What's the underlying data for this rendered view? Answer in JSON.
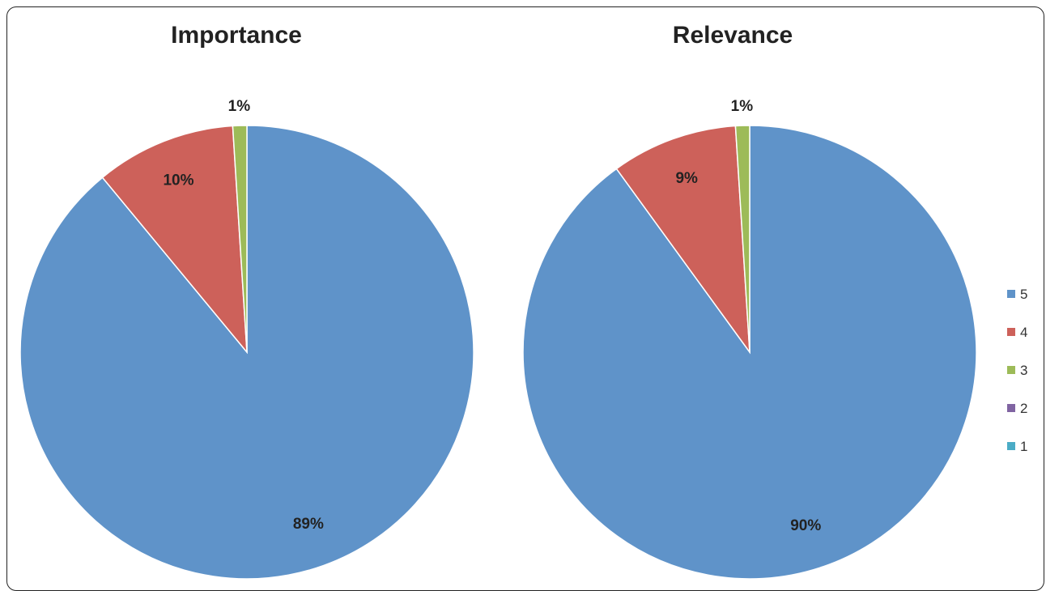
{
  "chart_data": [
    {
      "type": "pie",
      "title": "Importance",
      "categories": [
        "5",
        "4",
        "3",
        "2",
        "1"
      ],
      "values": [
        89,
        10,
        1,
        0,
        0
      ],
      "labels": [
        "89%",
        "10%",
        "1%",
        "",
        ""
      ]
    },
    {
      "type": "pie",
      "title": "Relevance",
      "categories": [
        "5",
        "4",
        "3",
        "2",
        "1"
      ],
      "values": [
        90,
        9,
        1,
        0,
        0
      ],
      "labels": [
        "90%",
        "9%",
        "1%",
        "",
        ""
      ]
    }
  ],
  "legend": {
    "placement": "right",
    "items": [
      "5",
      "4",
      "3",
      "2",
      "1"
    ]
  },
  "colors": [
    "#5f93c9",
    "#cd615a",
    "#9dbb58",
    "#8064a2",
    "#4bacc6"
  ]
}
